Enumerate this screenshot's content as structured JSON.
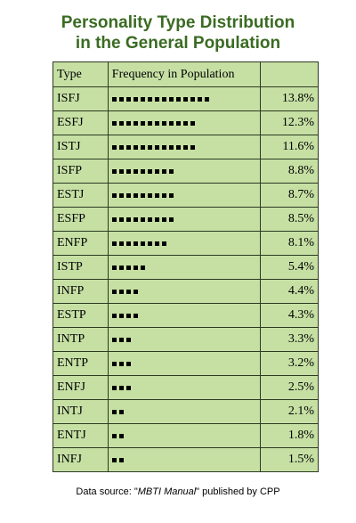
{
  "chart_data": {
    "type": "table",
    "title_line1": "Personality Type Distribution",
    "title_line2": "in the General Population",
    "headers": {
      "type": "Type",
      "frequency": "Frequency in Population",
      "percent": ""
    },
    "rows": [
      {
        "type": "ISFJ",
        "squares": 14,
        "percent_text": "13.8%",
        "value": 13.8
      },
      {
        "type": "ESFJ",
        "squares": 12,
        "percent_text": "12.3%",
        "value": 12.3
      },
      {
        "type": "ISTJ",
        "squares": 12,
        "percent_text": "11.6%",
        "value": 11.6
      },
      {
        "type": "ISFP",
        "squares": 9,
        "percent_text": "8.8%",
        "value": 8.8
      },
      {
        "type": "ESTJ",
        "squares": 9,
        "percent_text": "8.7%",
        "value": 8.7
      },
      {
        "type": "ESFP",
        "squares": 9,
        "percent_text": "8.5%",
        "value": 8.5
      },
      {
        "type": "ENFP",
        "squares": 8,
        "percent_text": "8.1%",
        "value": 8.1
      },
      {
        "type": "ISTP",
        "squares": 5,
        "percent_text": "5.4%",
        "value": 5.4
      },
      {
        "type": "INFP",
        "squares": 4,
        "percent_text": "4.4%",
        "value": 4.4
      },
      {
        "type": "ESTP",
        "squares": 4,
        "percent_text": "4.3%",
        "value": 4.3
      },
      {
        "type": "INTP",
        "squares": 3,
        "percent_text": "3.3%",
        "value": 3.3
      },
      {
        "type": "ENTP",
        "squares": 3,
        "percent_text": "3.2%",
        "value": 3.2
      },
      {
        "type": "ENFJ",
        "squares": 3,
        "percent_text": "2.5%",
        "value": 2.5
      },
      {
        "type": "INTJ",
        "squares": 2,
        "percent_text": "2.1%",
        "value": 2.1
      },
      {
        "type": "ENTJ",
        "squares": 2,
        "percent_text": "1.8%",
        "value": 1.8
      },
      {
        "type": "INFJ",
        "squares": 2,
        "percent_text": "1.5%",
        "value": 1.5
      }
    ]
  },
  "source": {
    "prefix": "Data source: \"",
    "book": "MBTI Manual",
    "suffix": "\" published by CPP"
  },
  "colors": {
    "title": "#3a6b22",
    "cell_background": "#c6e0a4",
    "border": "#2c3a22",
    "square": "#000000"
  }
}
